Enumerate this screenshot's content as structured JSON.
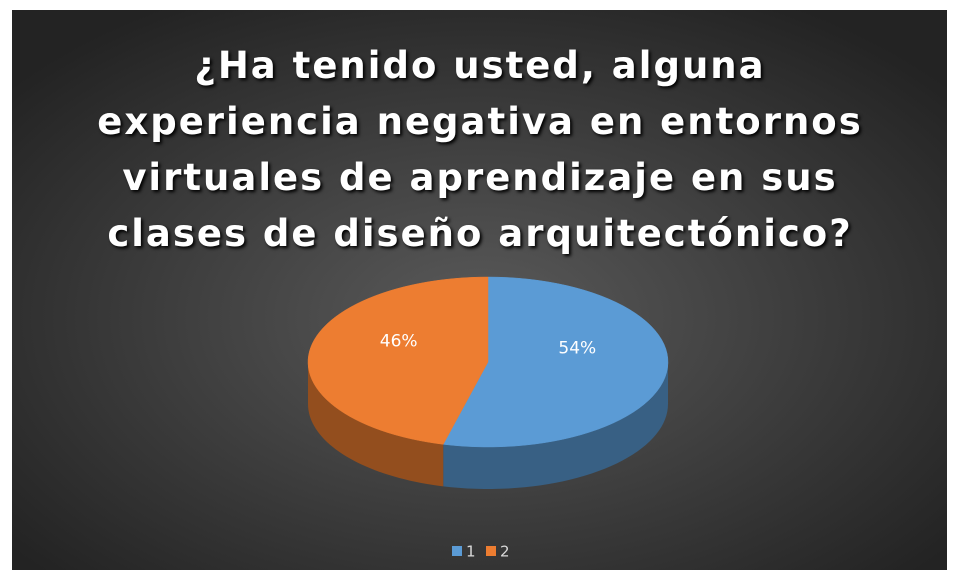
{
  "chart_data": {
    "type": "pie",
    "title": "¿Ha tenido usted, alguna experiencia negativa en entornos virtuales de aprendizaje en sus clases de diseño arquitectónico?",
    "categories": [
      "1",
      "2"
    ],
    "values": [
      54,
      46
    ],
    "value_labels": [
      "54%",
      "46%"
    ],
    "colors": [
      "#5b9bd5",
      "#ed7d31"
    ],
    "legend": "bottom"
  }
}
